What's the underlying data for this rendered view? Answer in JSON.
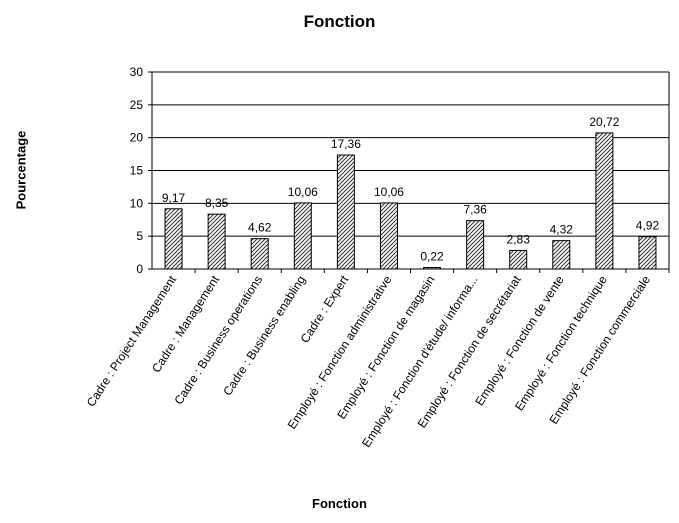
{
  "chart_data": {
    "type": "bar",
    "title": "Fonction",
    "xlabel": "Fonction",
    "ylabel": "Pourcentage",
    "ylim": [
      0,
      30
    ],
    "yticks": [
      0,
      5,
      10,
      15,
      20,
      25,
      30
    ],
    "grid": true,
    "legend": "none",
    "bar_fill": "#ffffff",
    "bar_hatch_color": "#333333",
    "categories": [
      "Cadre : Project Management",
      "Cadre : Management",
      "Cadre : Business operations",
      "Cadre : Business enabling",
      "Cadre : Expert",
      "Employé : Fonction administrative",
      "Employé : Fonction de magasin",
      "Employé : Fonction d'étude/ informa...",
      "Employé : Fonction de secrétariat",
      "Employé : Fonction de vente",
      "Employé : Fonction technique",
      "Employé : Fonction commerciale"
    ],
    "values": [
      9.17,
      8.35,
      4.62,
      10.06,
      17.36,
      10.06,
      0.22,
      7.36,
      2.83,
      4.32,
      20.72,
      4.92
    ],
    "value_labels": [
      "9,17",
      "8,35",
      "4,62",
      "10,06",
      "17,36",
      "10,06",
      "0,22",
      "7,36",
      "2,83",
      "4,32",
      "20,72",
      "4,92"
    ]
  }
}
